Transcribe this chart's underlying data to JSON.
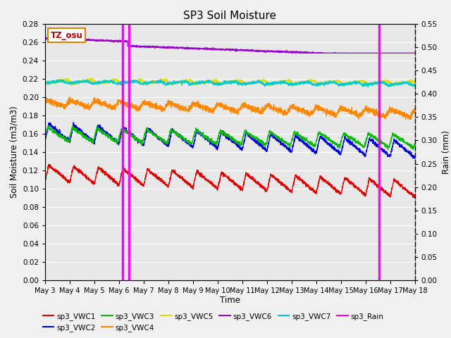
{
  "title": "SP3 Soil Moisture",
  "xlabel": "Time",
  "ylabel_left": "Soil Moisture (m3/m3)",
  "ylabel_right": "Rain (mm)",
  "ylim_left": [
    0.0,
    0.28
  ],
  "ylim_right": [
    0.0,
    0.55
  ],
  "yticks_left": [
    0.0,
    0.02,
    0.04,
    0.06,
    0.08,
    0.1,
    0.12,
    0.14,
    0.16,
    0.18,
    0.2,
    0.22,
    0.24,
    0.26,
    0.28
  ],
  "yticks_right": [
    0.0,
    0.05,
    0.1,
    0.15,
    0.2,
    0.25,
    0.3,
    0.35,
    0.4,
    0.45,
    0.5,
    0.55
  ],
  "xtick_labels": [
    "May 3",
    "May 4",
    "May 5",
    "May 6",
    "May 7",
    "May 8",
    "May 9",
    "May 10",
    "May 11",
    "May 12",
    "May 13",
    "May 14",
    "May 15",
    "May 16",
    "May 17",
    "May 18"
  ],
  "colors": {
    "sp3_VWC1": "#dd0000",
    "sp3_VWC2": "#0000dd",
    "sp3_VWC3": "#00bb00",
    "sp3_VWC4": "#ff8800",
    "sp3_VWC5": "#dddd00",
    "sp3_VWC6": "#9900cc",
    "sp3_VWC7": "#00cccc",
    "sp3_Rain": "#ff00ff"
  },
  "rain_spikes": [
    3.15,
    3.4,
    13.55
  ],
  "tz_label": "TZ_osu",
  "fig_bg": "#f0f0f0",
  "plot_bg": "#e8e8e8"
}
